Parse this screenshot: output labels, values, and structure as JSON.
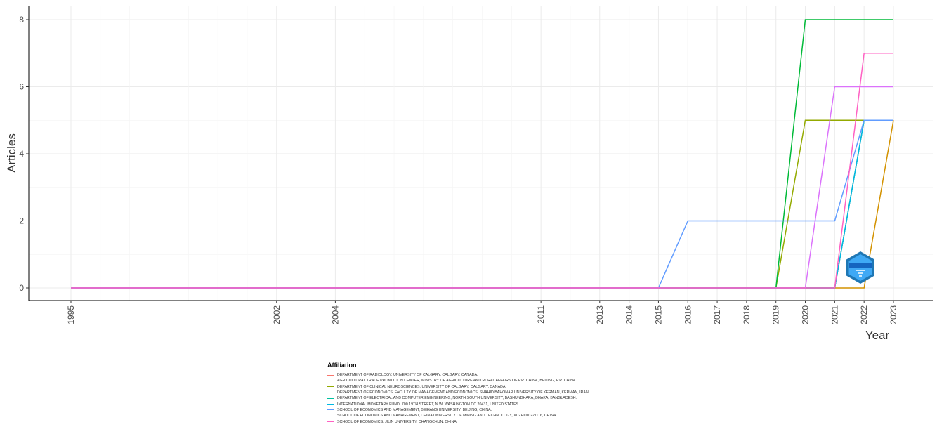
{
  "chart_data": {
    "type": "line",
    "xlabel": "Year",
    "ylabel": "Articles",
    "x": [
      "1995",
      "2002",
      "2004",
      "2011",
      "2013",
      "2014",
      "2015",
      "2016",
      "2017",
      "2018",
      "2019",
      "2020",
      "2021",
      "2022",
      "2023"
    ],
    "yticks": [
      0,
      2,
      4,
      6,
      8
    ],
    "ylim": [
      0,
      8
    ],
    "grid": true,
    "legend_title": "Affiliation",
    "legend_position": "bottom",
    "series": [
      {
        "name": " DEPARTMENT OF RADIOLOGY, UNIVERSITY OF CALGARY, CALGARY, CANADA.",
        "color": "#F8766D",
        "values": [
          0,
          0,
          0,
          0,
          0,
          0,
          0,
          0,
          0,
          0,
          0,
          0,
          0,
          5,
          5
        ]
      },
      {
        "name": "AGRICULTURAL TRADE PROMOTION CENTER, MINISTRY OF AGRICULTURE AND RURAL AFFAIRS OF P.R. CHINA, BEIJING, P.R. CHINA.",
        "color": "#D39200",
        "values": [
          0,
          0,
          0,
          0,
          0,
          0,
          0,
          0,
          0,
          0,
          0,
          0,
          0,
          0,
          5
        ]
      },
      {
        "name": "DEPARTMENT OF CLINICAL NEUROSCIENCES, UNIVERSITY OF CALGARY, CALGARY, CANADA.",
        "color": "#93AA00",
        "values": [
          0,
          0,
          0,
          0,
          0,
          0,
          0,
          0,
          0,
          0,
          0,
          5,
          5,
          5,
          5
        ]
      },
      {
        "name": "DEPARTMENT OF ECONOMICS, FACULTY OF MANAGEMENT AND ECONOMICS, SHAHID BAHONAR UNIVERSITY OF KERMAN, KERMAN, IRAN.",
        "color": "#00BA38",
        "values": [
          0,
          0,
          0,
          0,
          0,
          0,
          0,
          0,
          0,
          0,
          0,
          8,
          8,
          8,
          8
        ]
      },
      {
        "name": "DEPARTMENT OF ELECTRICAL AND COMPUTER ENGINEERING, NORTH SOUTH UNIVERSITY, BASHUNDHARA, DHAKA, BANGLADESH.",
        "color": "#00C19F",
        "values": [
          0,
          0,
          0,
          0,
          0,
          0,
          0,
          0,
          0,
          0,
          0,
          0,
          0,
          5,
          5
        ]
      },
      {
        "name": "INTERNATIONAL MONETARY FUND, 700 19TH STREET, N.W. WASHINGTON DC 20431, UNITED STATES.",
        "color": "#00B9E3",
        "values": [
          0,
          0,
          0,
          0,
          0,
          0,
          0,
          0,
          0,
          0,
          0,
          0,
          0,
          5,
          5
        ]
      },
      {
        "name": "SCHOOL OF ECONOMICS AND MANAGEMENT, BEIHANG UNIVERSITY, BEIJING, CHINA.",
        "color": "#619CFF",
        "values": [
          0,
          0,
          0,
          0,
          0,
          0,
          0,
          2,
          2,
          2,
          2,
          2,
          2,
          5,
          5
        ]
      },
      {
        "name": "SCHOOL OF ECONOMICS AND MANAGEMENT, CHINA UNIVERSITY OF MINING AND TECHNOLOGY, XUZHOU 221116, CHINA.",
        "color": "#DB72FB",
        "values": [
          0,
          0,
          0,
          0,
          0,
          0,
          0,
          0,
          0,
          0,
          0,
          0,
          6,
          6,
          6
        ]
      },
      {
        "name": "SCHOOL OF ECONOMICS, JILIN UNIVERSITY, CHANGCHUN, CHINA.",
        "color": "#FF61C3",
        "values": [
          0,
          0,
          0,
          0,
          0,
          0,
          0,
          0,
          0,
          0,
          0,
          0,
          0,
          7,
          7
        ]
      }
    ]
  }
}
